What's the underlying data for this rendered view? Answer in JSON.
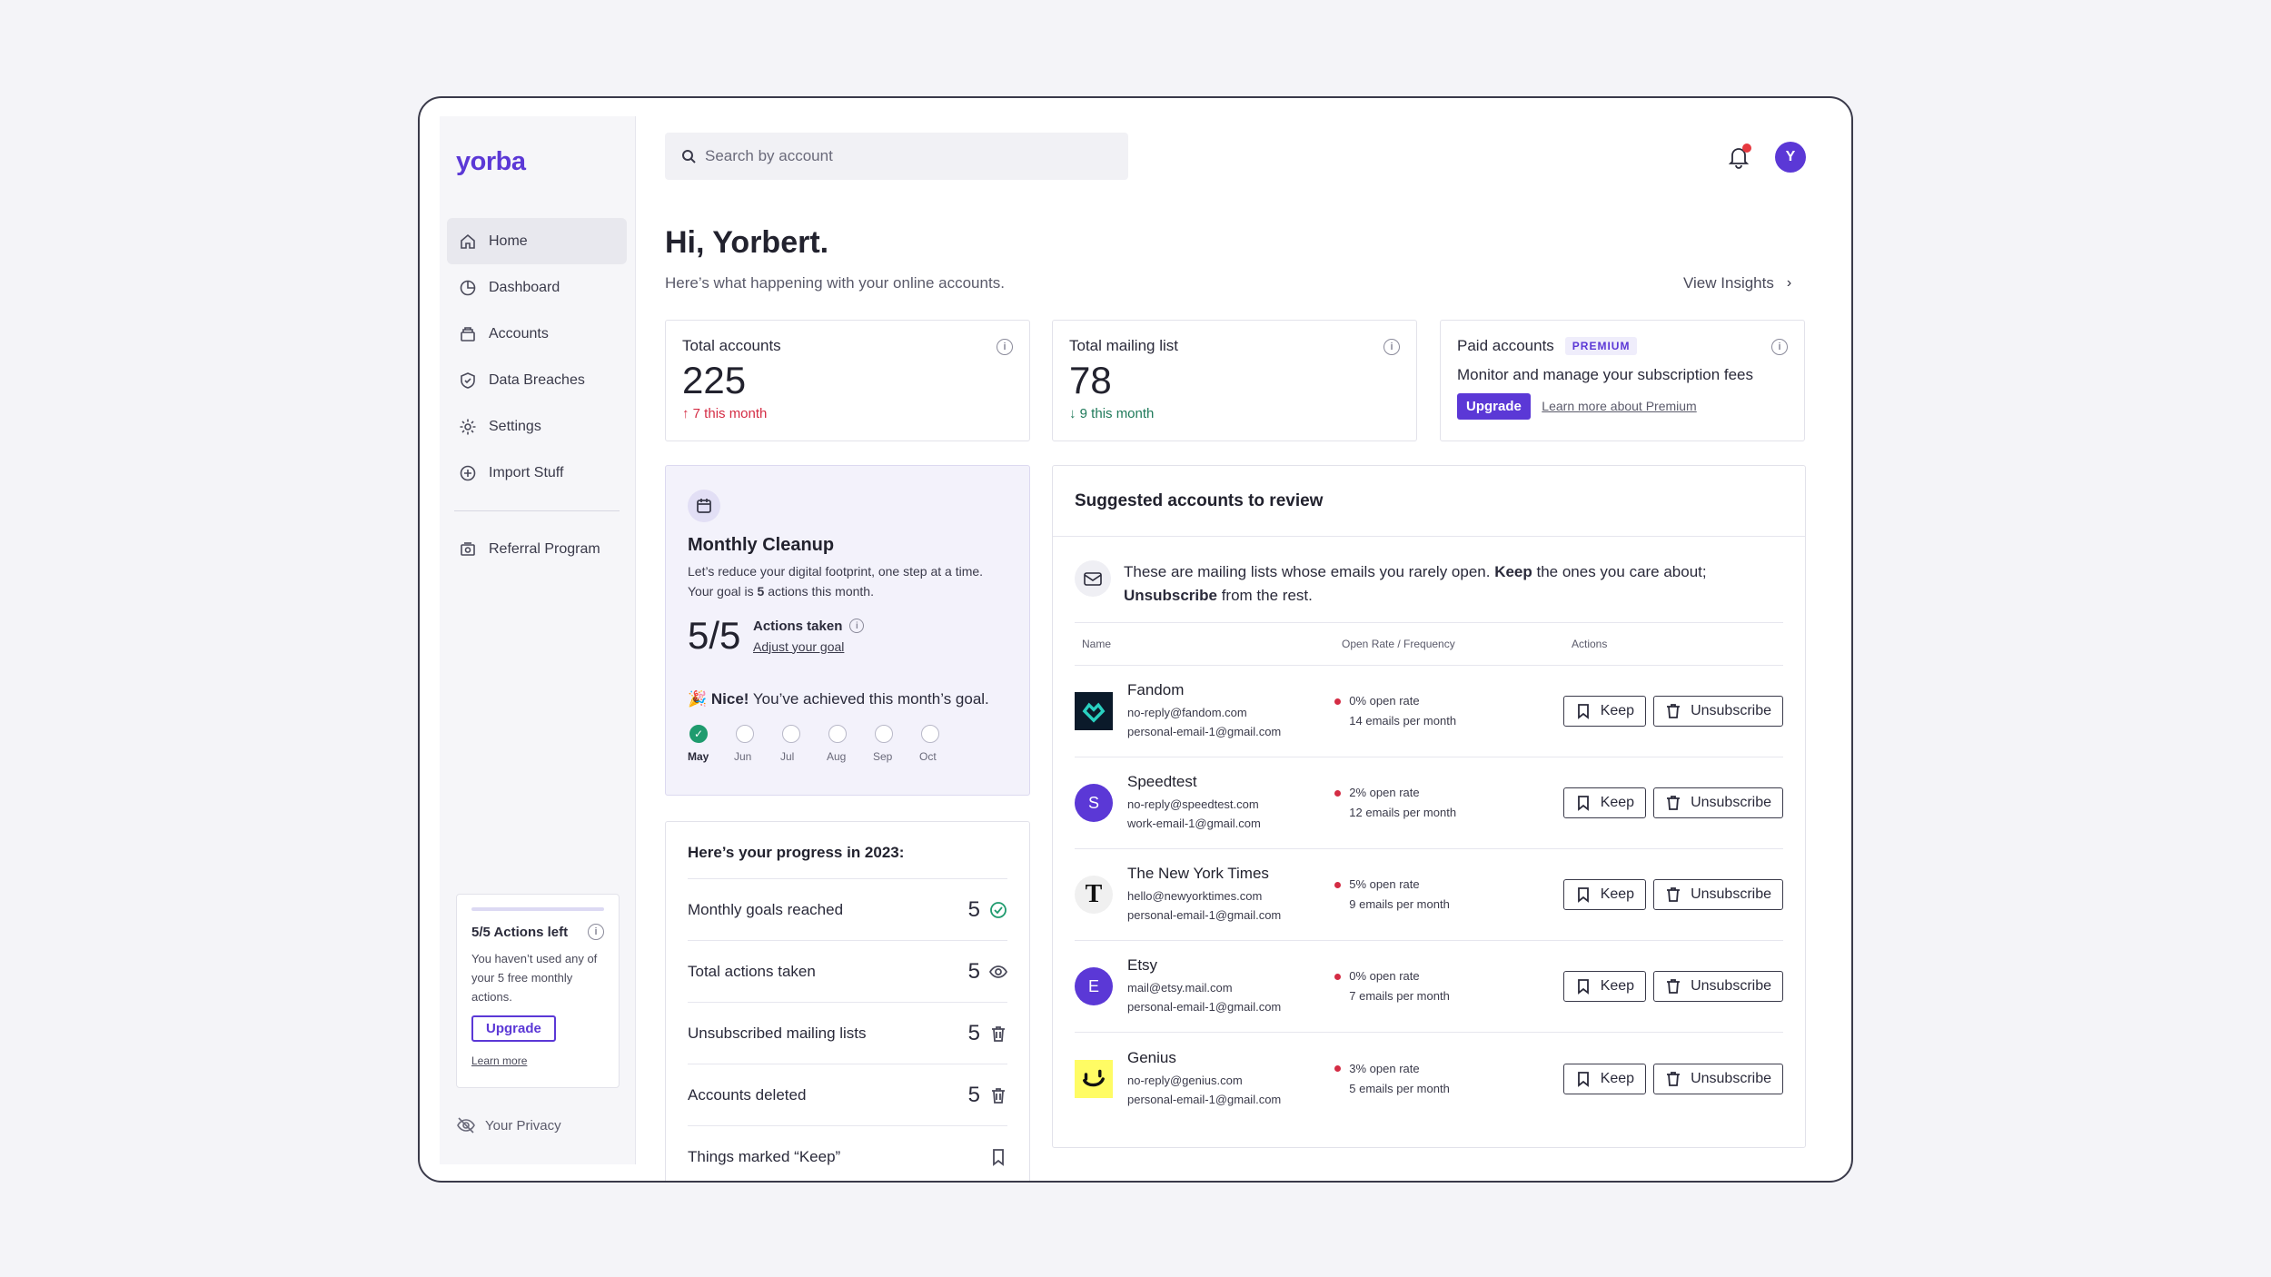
{
  "app": {
    "logo": "yorba"
  },
  "sidebar": {
    "items": [
      {
        "label": "Home",
        "icon": "home-icon"
      },
      {
        "label": "Dashboard",
        "icon": "pie-chart-icon"
      },
      {
        "label": "Accounts",
        "icon": "stack-icon"
      },
      {
        "label": "Data Breaches",
        "icon": "shield-icon"
      },
      {
        "label": "Settings",
        "icon": "gear-icon"
      },
      {
        "label": "Import Stuff",
        "icon": "plus-circle-icon"
      }
    ],
    "referral": "Referral Program",
    "actions_card": {
      "title": "5/5 Actions left",
      "text": "You haven’t used any of your 5 free monthly actions.",
      "upgrade": "Upgrade",
      "learn_more": "Learn more"
    },
    "privacy": "Your Privacy"
  },
  "header": {
    "search_placeholder": "Search by account",
    "avatar_initial": "Y"
  },
  "main": {
    "greeting": "Hi, Yorbert.",
    "subtitle": "Here’s what happening with your online accounts.",
    "view_insights": "View Insights"
  },
  "stats": {
    "total_accounts": {
      "label": "Total accounts",
      "value": "225",
      "change": "7 this month"
    },
    "mailing_list": {
      "label": "Total mailing list",
      "value": "78",
      "change": "9 this month"
    },
    "paid": {
      "label": "Paid accounts",
      "badge": "PREMIUM",
      "desc": "Monitor and manage your subscription fees",
      "upgrade": "Upgrade",
      "learn": "Learn more about Premium"
    }
  },
  "cleanup": {
    "title": "Monthly Cleanup",
    "text_before": "Let’s reduce your digital footprint, one step at a time. Your goal is ",
    "goal": "5",
    "text_after": " actions this month.",
    "score": "5/5",
    "actions_taken": "Actions taken",
    "adjust": "Adjust your goal",
    "nice_bold": "Nice!",
    "nice_rest": " You’ve achieved this month’s goal.",
    "months": [
      "May",
      "Jun",
      "Jul",
      "Aug",
      "Sep",
      "Oct"
    ]
  },
  "progress": {
    "title": "Here’s your progress in 2023:",
    "rows": [
      {
        "label": "Monthly goals reached",
        "value": "5"
      },
      {
        "label": "Total actions taken",
        "value": "5"
      },
      {
        "label": "Unsubscribed mailing lists",
        "value": "5"
      },
      {
        "label": "Accounts deleted",
        "value": "5"
      },
      {
        "label": "Things marked “Keep”",
        "value": ""
      }
    ]
  },
  "suggest": {
    "title": "Suggested accounts to review",
    "intro_a": "These are mailing lists whose emails you rarely open. ",
    "intro_keep": "Keep",
    "intro_b": " the ones you care about; ",
    "intro_unsub": "Unsubscribe",
    "intro_c": " from the rest.",
    "col_name": "Name",
    "col_rate": "Open Rate / Frequency",
    "col_actions": "Actions",
    "keep": "Keep",
    "unsubscribe": "Unsubscribe",
    "rows": [
      {
        "name": "Fandom",
        "email1": "no-reply@fandom.com",
        "email2": "personal-email-1@gmail.com",
        "rate": "0% open rate",
        "freq": "14 emails per month"
      },
      {
        "name": "Speedtest",
        "initial": "S",
        "email1": "no-reply@speedtest.com",
        "email2": "work-email-1@gmail.com",
        "rate": "2% open rate",
        "freq": "12 emails per month"
      },
      {
        "name": "The New York Times",
        "initial": "T",
        "email1": "hello@newyorktimes.com",
        "email2": "personal-email-1@gmail.com",
        "rate": "5% open rate",
        "freq": "9 emails per month"
      },
      {
        "name": "Etsy",
        "initial": "E",
        "email1": "mail@etsy.mail.com",
        "email2": "personal-email-1@gmail.com",
        "rate": "0% open rate",
        "freq": "7 emails per month"
      },
      {
        "name": "Genius",
        "email1": "no-reply@genius.com",
        "email2": "personal-email-1@gmail.com",
        "rate": "3% open rate",
        "freq": "5 emails per month"
      }
    ]
  }
}
